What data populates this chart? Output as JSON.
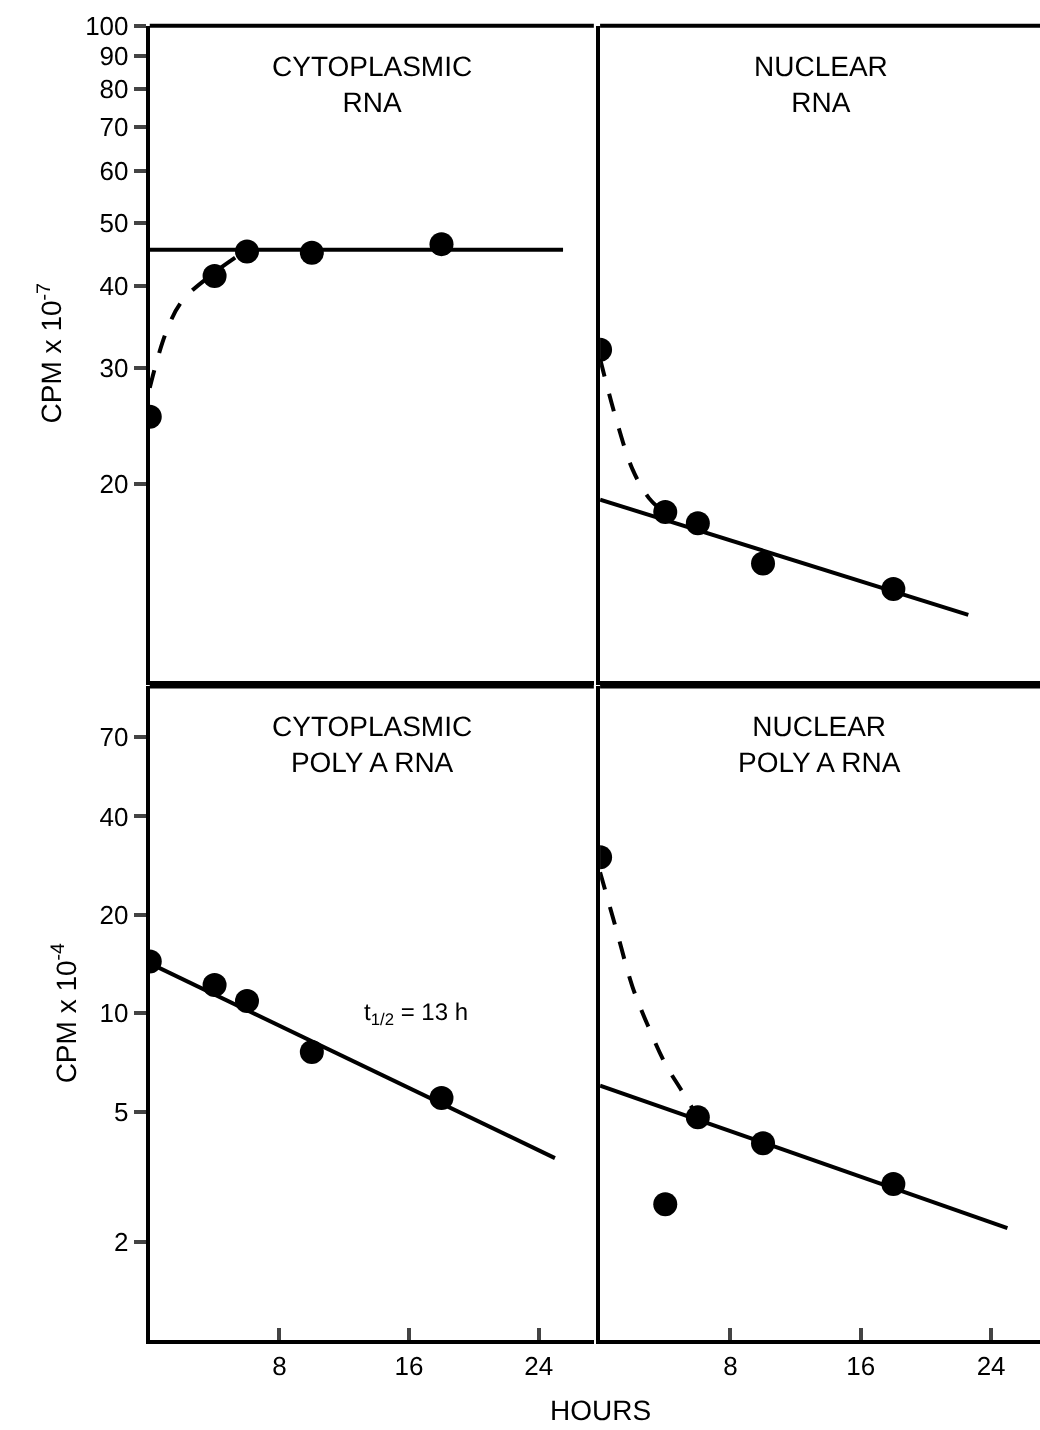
{
  "chart_data": [
    {
      "type": "scatter",
      "title": "CYTOPLASMIC\nRNA",
      "ylabel": "CPM x 10$^{-7}$",
      "log": "y",
      "xlim": [
        0,
        27.4
      ],
      "ylim": [
        10,
        100
      ],
      "yticks": [
        20,
        30,
        40,
        50,
        60,
        70,
        80,
        90,
        100
      ],
      "tick_labels": "y",
      "series": [
        {
          "marker": "circle",
          "color": "#000000",
          "x": [
            0,
            4,
            6,
            10,
            18
          ],
          "values": [
            25.3,
            41.5,
            45.2,
            45,
            46.4
          ]
        },
        {
          "type": "line",
          "line_style": "solid",
          "marker": "none",
          "color": "#000000",
          "x": [
            0,
            25.5
          ],
          "values": [
            45.5,
            45.5
          ]
        },
        {
          "type": "line",
          "line_style": "dashed",
          "marker": "none",
          "color": "#000000",
          "x": [
            0,
            1,
            2,
            4,
            6
          ],
          "values": [
            28,
            34,
            38,
            42,
            45.5
          ]
        }
      ]
    },
    {
      "type": "scatter",
      "title": "NUCLEAR\nRNA",
      "log": "y",
      "xlim": [
        0,
        27
      ],
      "ylim": [
        10,
        100
      ],
      "tick_labels": false,
      "series": [
        {
          "marker": "circle",
          "color": "#000000",
          "x": [
            0,
            4,
            6,
            10,
            18
          ],
          "values": [
            32,
            18.1,
            17.4,
            15.1,
            13.8
          ]
        },
        {
          "type": "line",
          "line_style": "solid",
          "marker": "none",
          "color": "#000000",
          "x": [
            0,
            22.6
          ],
          "values": [
            18.9,
            12.6
          ]
        },
        {
          "type": "line",
          "line_style": "dashed",
          "marker": "none",
          "color": "#000000",
          "x": [
            0,
            1,
            2,
            3,
            4
          ],
          "values": [
            31,
            25,
            21,
            19,
            18
          ]
        }
      ]
    },
    {
      "type": "scatter",
      "title": "CYTOPLASMIC\nPOLY A RNA",
      "ylabel": "CPM x 10$^{-4}$",
      "log": "y",
      "xlim": [
        0,
        27.4
      ],
      "ylim": [
        1,
        100
      ],
      "xticks": [
        8,
        16,
        24
      ],
      "yticks": [
        2,
        5,
        10,
        20,
        40,
        70
      ],
      "annotations": [
        "t$_{1/2}$ = 13 h"
      ],
      "series": [
        {
          "marker": "circle",
          "color": "#000000",
          "x": [
            0,
            4,
            6,
            10,
            18
          ],
          "values": [
            14.4,
            12.2,
            10.9,
            7.6,
            5.5
          ]
        },
        {
          "type": "line",
          "line_style": "solid",
          "marker": "none",
          "color": "#000000",
          "x": [
            0,
            25
          ],
          "values": [
            14.2,
            3.6
          ]
        }
      ]
    },
    {
      "type": "scatter",
      "title": "NUCLEAR\nPOLY A RNA",
      "xlabel": "HOURS",
      "log": "y",
      "xlim": [
        0,
        27
      ],
      "ylim": [
        1,
        100
      ],
      "xticks": [
        8,
        16,
        24
      ],
      "tick_labels": "x",
      "series": [
        {
          "marker": "circle",
          "color": "#000000",
          "x": [
            0,
            4,
            6,
            10,
            18
          ],
          "values": [
            30,
            2.6,
            4.8,
            4.0,
            3.0
          ]
        },
        {
          "type": "line",
          "line_style": "solid",
          "marker": "none",
          "color": "#000000",
          "x": [
            0,
            25
          ],
          "values": [
            6.0,
            2.2
          ]
        },
        {
          "type": "line",
          "line_style": "dashed",
          "marker": "none",
          "color": "#000000",
          "x": [
            0,
            1,
            2,
            3,
            4,
            5,
            6
          ],
          "values": [
            27,
            18,
            12,
            9,
            7,
            5.8,
            4.8
          ]
        }
      ]
    }
  ]
}
